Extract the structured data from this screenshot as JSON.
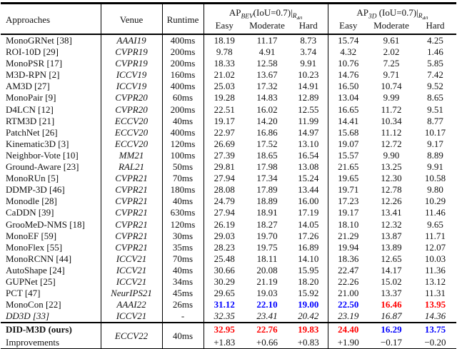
{
  "header": {
    "approaches": "Approaches",
    "venue": "Venue",
    "runtime": "Runtime",
    "bev": {
      "ap": "AP",
      "sub": "BEV",
      "rest": "(IoU=0.7)|",
      "r": "R",
      "rnum": "40"
    },
    "a3d": {
      "ap": "AP",
      "sub": "3D",
      "rest": "(IoU=0.7)|",
      "r": "R",
      "rnum": "40"
    },
    "subcols": {
      "easy": "Easy",
      "moderate": "Moderate",
      "hard": "Hard"
    }
  },
  "colors": {
    "best": "#ff0000",
    "second_best": "#0000ff"
  },
  "rows": [
    {
      "name": "MonoGRNet [38]",
      "venue": "AAAI19",
      "runtime": "400ms",
      "vals": [
        "18.19",
        "11.17",
        "8.73",
        "15.74",
        "9.61",
        "4.25"
      ],
      "cls": [
        "",
        "",
        "",
        "",
        "",
        ""
      ],
      "style": ""
    },
    {
      "name": "ROI-10D [29]",
      "venue": "CVPR19",
      "runtime": "200ms",
      "vals": [
        "9.78",
        "4.91",
        "3.74",
        "4.32",
        "2.02",
        "1.46"
      ],
      "cls": [
        "",
        "",
        "",
        "",
        "",
        ""
      ],
      "style": ""
    },
    {
      "name": "MonoPSR [17]",
      "venue": "CVPR19",
      "runtime": "200ms",
      "vals": [
        "18.33",
        "12.58",
        "9.91",
        "10.76",
        "7.25",
        "5.85"
      ],
      "cls": [
        "",
        "",
        "",
        "",
        "",
        ""
      ],
      "style": ""
    },
    {
      "name": "M3D-RPN [2]",
      "venue": "ICCV19",
      "runtime": "160ms",
      "vals": [
        "21.02",
        "13.67",
        "10.23",
        "14.76",
        "9.71",
        "7.42"
      ],
      "cls": [
        "",
        "",
        "",
        "",
        "",
        ""
      ],
      "style": ""
    },
    {
      "name": "AM3D [27]",
      "venue": "ICCV19",
      "runtime": "400ms",
      "vals": [
        "25.03",
        "17.32",
        "14.91",
        "16.50",
        "10.74",
        "9.52"
      ],
      "cls": [
        "",
        "",
        "",
        "",
        "",
        ""
      ],
      "style": ""
    },
    {
      "name": "MonoPair [9]",
      "venue": "CVPR20",
      "runtime": "60ms",
      "vals": [
        "19.28",
        "14.83",
        "12.89",
        "13.04",
        "9.99",
        "8.65"
      ],
      "cls": [
        "",
        "",
        "",
        "",
        "",
        ""
      ],
      "style": ""
    },
    {
      "name": "D4LCN [12]",
      "venue": "CVPR20",
      "runtime": "200ms",
      "vals": [
        "22.51",
        "16.02",
        "12.55",
        "16.65",
        "11.72",
        "9.51"
      ],
      "cls": [
        "",
        "",
        "",
        "",
        "",
        ""
      ],
      "style": ""
    },
    {
      "name": "RTM3D [21]",
      "venue": "ECCV20",
      "runtime": "40ms",
      "vals": [
        "19.17",
        "14.20",
        "11.99",
        "14.41",
        "10.34",
        "8.77"
      ],
      "cls": [
        "",
        "",
        "",
        "",
        "",
        ""
      ],
      "style": ""
    },
    {
      "name": "PatchNet [26]",
      "venue": "ECCV20",
      "runtime": "400ms",
      "vals": [
        "22.97",
        "16.86",
        "14.97",
        "15.68",
        "11.12",
        "10.17"
      ],
      "cls": [
        "",
        "",
        "",
        "",
        "",
        ""
      ],
      "style": ""
    },
    {
      "name": "Kinematic3D [3]",
      "venue": "ECCV20",
      "runtime": "120ms",
      "vals": [
        "26.69",
        "17.52",
        "13.10",
        "19.07",
        "12.72",
        "9.17"
      ],
      "cls": [
        "",
        "",
        "",
        "",
        "",
        ""
      ],
      "style": ""
    },
    {
      "name": "Neighbor-Vote [10]",
      "venue": "MM21",
      "runtime": "100ms",
      "vals": [
        "27.39",
        "18.65",
        "16.54",
        "15.57",
        "9.90",
        "8.89"
      ],
      "cls": [
        "",
        "",
        "",
        "",
        "",
        ""
      ],
      "style": ""
    },
    {
      "name": "Ground-Aware [23]",
      "venue": "RAL21",
      "runtime": "50ms",
      "vals": [
        "29.81",
        "17.98",
        "13.08",
        "21.65",
        "13.25",
        "9.91"
      ],
      "cls": [
        "",
        "",
        "",
        "",
        "",
        ""
      ],
      "style": ""
    },
    {
      "name": "MonoRUn [5]",
      "venue": "CVPR21",
      "runtime": "70ms",
      "vals": [
        "27.94",
        "17.34",
        "15.24",
        "19.65",
        "12.30",
        "10.58"
      ],
      "cls": [
        "",
        "",
        "",
        "",
        "",
        ""
      ],
      "style": ""
    },
    {
      "name": "DDMP-3D [46]",
      "venue": "CVPR21",
      "runtime": "180ms",
      "vals": [
        "28.08",
        "17.89",
        "13.44",
        "19.71",
        "12.78",
        "9.80"
      ],
      "cls": [
        "",
        "",
        "",
        "",
        "",
        ""
      ],
      "style": ""
    },
    {
      "name": "Monodle [28]",
      "venue": "CVPR21",
      "runtime": "40ms",
      "vals": [
        "24.79",
        "18.89",
        "16.00",
        "17.23",
        "12.26",
        "10.29"
      ],
      "cls": [
        "",
        "",
        "",
        "",
        "",
        ""
      ],
      "style": ""
    },
    {
      "name": "CaDDN [39]",
      "venue": "CVPR21",
      "runtime": "630ms",
      "vals": [
        "27.94",
        "18.91",
        "17.19",
        "19.17",
        "13.41",
        "11.46"
      ],
      "cls": [
        "",
        "",
        "",
        "",
        "",
        ""
      ],
      "style": ""
    },
    {
      "name": "GrooMeD-NMS [18]",
      "venue": "CVPR21",
      "runtime": "120ms",
      "vals": [
        "26.19",
        "18.27",
        "14.05",
        "18.10",
        "12.32",
        "9.65"
      ],
      "cls": [
        "",
        "",
        "",
        "",
        "",
        ""
      ],
      "style": ""
    },
    {
      "name": "MonoEF [59]",
      "venue": "CVPR21",
      "runtime": "30ms",
      "vals": [
        "29.03",
        "19.70",
        "17.26",
        "21.29",
        "13.87",
        "11.71"
      ],
      "cls": [
        "",
        "",
        "",
        "",
        "",
        ""
      ],
      "style": ""
    },
    {
      "name": "MonoFlex [55]",
      "venue": "CVPR21",
      "runtime": "35ms",
      "vals": [
        "28.23",
        "19.75",
        "16.89",
        "19.94",
        "13.89",
        "12.07"
      ],
      "cls": [
        "",
        "",
        "",
        "",
        "",
        ""
      ],
      "style": ""
    },
    {
      "name": "MonoRCNN [44]",
      "venue": "ICCV21",
      "runtime": "70ms",
      "vals": [
        "25.48",
        "18.11",
        "14.10",
        "18.36",
        "12.65",
        "10.03"
      ],
      "cls": [
        "",
        "",
        "",
        "",
        "",
        ""
      ],
      "style": ""
    },
    {
      "name": "AutoShape [24]",
      "venue": "ICCV21",
      "runtime": "40ms",
      "vals": [
        "30.66",
        "20.08",
        "15.95",
        "22.47",
        "14.17",
        "11.36"
      ],
      "cls": [
        "",
        "",
        "",
        "",
        "",
        ""
      ],
      "style": ""
    },
    {
      "name": "GUPNet [25]",
      "venue": "ICCV21",
      "runtime": "34ms",
      "vals": [
        "30.29",
        "21.19",
        "18.20",
        "22.26",
        "15.02",
        "13.12"
      ],
      "cls": [
        "",
        "",
        "",
        "",
        "",
        ""
      ],
      "style": ""
    },
    {
      "name": "PCT [47]",
      "venue": "NeurIPS21",
      "runtime": "45ms",
      "vals": [
        "29.65",
        "19.03",
        "15.92",
        "21.00",
        "13.37",
        "11.31"
      ],
      "cls": [
        "",
        "",
        "",
        "",
        "",
        ""
      ],
      "style": ""
    },
    {
      "name": "MonoCon [22]",
      "venue": "AAAI22",
      "runtime": "26ms",
      "vals": [
        "31.12",
        "22.10",
        "19.00",
        "22.50",
        "16.46",
        "13.95"
      ],
      "cls": [
        "b",
        "b",
        "b",
        "b",
        "r",
        "r"
      ],
      "style": ""
    },
    {
      "name": "DD3D [33]",
      "venue": "ICCV21",
      "runtime": "-",
      "vals": [
        "32.35",
        "23.41",
        "20.42",
        "23.19",
        "16.87",
        "14.36"
      ],
      "cls": [
        "",
        "",
        "",
        "",
        "",
        ""
      ],
      "style": "italic-row"
    }
  ],
  "final": {
    "name": "DID-M3D (ours)",
    "improvements_label": "Improvements",
    "venue": "ECCV22",
    "runtime": "40ms",
    "vals": [
      "32.95",
      "22.76",
      "19.83",
      "24.40",
      "16.29",
      "13.75"
    ],
    "cls": [
      "r",
      "r",
      "r",
      "r",
      "b",
      "b"
    ],
    "improvements": [
      "+1.83",
      "+0.66",
      "+0.83",
      "+1.90",
      "−0.17",
      "−0.20"
    ]
  }
}
